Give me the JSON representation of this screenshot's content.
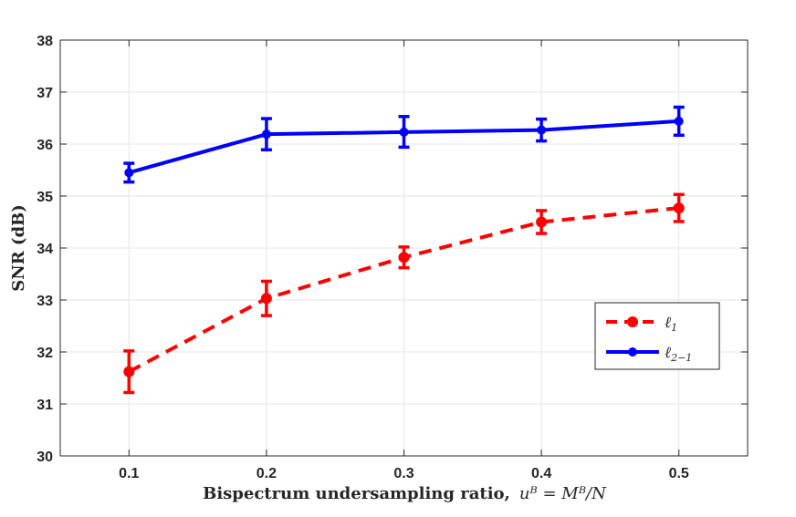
{
  "chart_data": {
    "type": "line",
    "title": "",
    "xlabel_bold": "Bispectrum undersampling ratio,",
    "xlabel_math": "uᴮ = Mᴮ/N",
    "ylabel": "SNR (dB)",
    "xlim": [
      0.05,
      0.55
    ],
    "ylim": [
      30,
      38
    ],
    "xticks": [
      "0.1",
      "0.2",
      "0.3",
      "0.4",
      "0.5"
    ],
    "yticks": [
      "30",
      "31",
      "32",
      "33",
      "34",
      "35",
      "36",
      "37",
      "38"
    ],
    "grid": true,
    "legend_position": "lower-right",
    "x": [
      0.1,
      0.2,
      0.3,
      0.4,
      0.5
    ],
    "series": [
      {
        "name": "ℓ₁",
        "name_main": "ℓ",
        "name_sub": "1",
        "color": "#ff0000",
        "style": "dashed",
        "values": [
          31.62,
          33.03,
          33.82,
          34.5,
          34.77
        ],
        "err_low": [
          31.22,
          32.7,
          33.62,
          34.28,
          34.51
        ],
        "err_high": [
          32.02,
          33.36,
          34.02,
          34.72,
          35.03
        ]
      },
      {
        "name": "ℓ₂₋₁",
        "name_main": "ℓ",
        "name_sub": "2−1",
        "color": "#0000ff",
        "style": "solid",
        "values": [
          35.45,
          36.19,
          36.23,
          36.27,
          36.44
        ],
        "err_low": [
          35.27,
          35.89,
          35.94,
          36.06,
          36.17
        ],
        "err_high": [
          35.63,
          36.49,
          36.53,
          36.48,
          36.71
        ]
      }
    ]
  }
}
